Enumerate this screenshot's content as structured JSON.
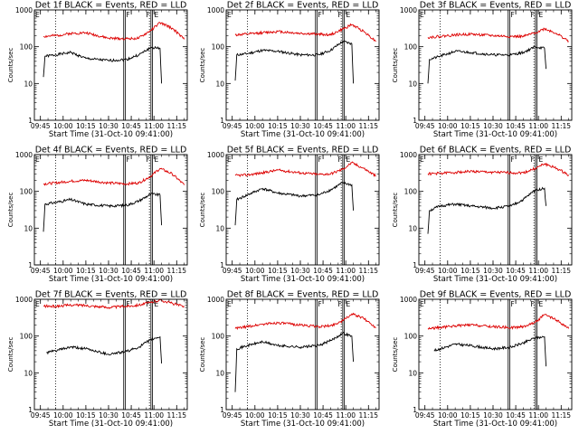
{
  "chart_data": {
    "type": "line",
    "y_scale": "log",
    "ylim": [
      1,
      1000
    ],
    "y_ticks": [
      1,
      10,
      100,
      1000
    ],
    "y_tick_labels": [
      "1",
      "10",
      "100",
      "1000"
    ],
    "x_ticks": [
      "09:45",
      "10:00",
      "10:15",
      "10:30",
      "10:45",
      "11:00",
      "11:15"
    ],
    "xlim": [
      "09:41",
      "11:22"
    ],
    "vertical_lines": {
      "dotted": [
        "09:55",
        "10:57"
      ],
      "solid": [
        "10:40",
        "10:41",
        "10:58",
        "10:59"
      ]
    },
    "marker_labels": [
      "F",
      "F",
      "E"
    ],
    "line_colors": {
      "events": "#000000",
      "lld": "#dd0000"
    },
    "panels": [
      {
        "title": "Det 1f BLACK = Events, RED = LLD",
        "xlabel": "Start Time (31-Oct-10 09:41:00)",
        "ylabel": "Counts/sec",
        "series": [
          {
            "name": "Events",
            "x": [
              "09:47",
              "09:48",
              "09:55",
              "10:05",
              "10:15",
              "10:30",
              "10:42",
              "10:50",
              "10:58",
              "11:04",
              "11:05"
            ],
            "y": [
              15,
              55,
              60,
              70,
              48,
              42,
              45,
              60,
              95,
              90,
              10
            ]
          },
          {
            "name": "LLD",
            "x": [
              "09:47",
              "09:55",
              "10:05",
              "10:15",
              "10:30",
              "10:42",
              "10:50",
              "10:58",
              "11:04",
              "11:12",
              "11:20"
            ],
            "y": [
              190,
              200,
              230,
              240,
              170,
              165,
              170,
              280,
              450,
              320,
              160
            ]
          }
        ]
      },
      {
        "title": "Det 2f BLACK = Events, RED = LLD",
        "xlabel": "Start Time (31-Oct-10 09:41:00)",
        "ylabel": "Counts/sec",
        "series": [
          {
            "name": "Events",
            "x": [
              "09:47",
              "09:48",
              "09:55",
              "10:05",
              "10:15",
              "10:30",
              "10:42",
              "10:50",
              "10:58",
              "11:04",
              "11:05"
            ],
            "y": [
              12,
              60,
              65,
              80,
              75,
              60,
              60,
              80,
              140,
              120,
              10
            ]
          },
          {
            "name": "LLD",
            "x": [
              "09:47",
              "09:55",
              "10:05",
              "10:15",
              "10:30",
              "10:42",
              "10:50",
              "10:58",
              "11:04",
              "11:12",
              "11:20"
            ],
            "y": [
              210,
              220,
              240,
              260,
              230,
              220,
              210,
              300,
              400,
              260,
              140
            ]
          }
        ]
      },
      {
        "title": "Det 3f BLACK = Events, RED = LLD",
        "xlabel": "Start Time (31-Oct-10 09:41:00)",
        "ylabel": "Counts/sec",
        "series": [
          {
            "name": "Events",
            "x": [
              "09:47",
              "09:48",
              "09:55",
              "10:05",
              "10:15",
              "10:30",
              "10:42",
              "10:50",
              "10:58",
              "11:04",
              "11:05"
            ],
            "y": [
              10,
              45,
              55,
              75,
              70,
              60,
              60,
              70,
              100,
              90,
              25
            ]
          },
          {
            "name": "LLD",
            "x": [
              "09:47",
              "09:55",
              "10:05",
              "10:15",
              "10:30",
              "10:42",
              "10:50",
              "10:58",
              "11:04",
              "11:12",
              "11:20"
            ],
            "y": [
              180,
              190,
              210,
              220,
              200,
              190,
              190,
              240,
              310,
              230,
              140
            ]
          }
        ]
      },
      {
        "title": "Det 4f BLACK = Events, RED = LLD",
        "xlabel": "Start Time (31-Oct-10 09:41:00)",
        "ylabel": "Counts/sec",
        "series": [
          {
            "name": "Events",
            "x": [
              "09:47",
              "09:48",
              "09:55",
              "10:05",
              "10:15",
              "10:30",
              "10:42",
              "10:50",
              "10:58",
              "11:04",
              "11:05"
            ],
            "y": [
              8,
              45,
              50,
              60,
              45,
              40,
              42,
              55,
              85,
              80,
              12
            ]
          },
          {
            "name": "LLD",
            "x": [
              "09:47",
              "09:55",
              "10:05",
              "10:15",
              "10:30",
              "10:42",
              "10:50",
              "10:58",
              "11:04",
              "11:12",
              "11:20"
            ],
            "y": [
              160,
              170,
              190,
              200,
              170,
              160,
              170,
              260,
              420,
              300,
              150
            ]
          }
        ]
      },
      {
        "title": "Det 5f BLACK = Events, RED = LLD",
        "xlabel": "Start Time (31-Oct-10 09:41:00)",
        "ylabel": "Counts/sec",
        "series": [
          {
            "name": "Events",
            "x": [
              "09:47",
              "09:48",
              "09:55",
              "10:05",
              "10:15",
              "10:30",
              "10:42",
              "10:50",
              "10:58",
              "11:04",
              "11:05"
            ],
            "y": [
              12,
              60,
              80,
              120,
              90,
              75,
              80,
              110,
              170,
              150,
              30
            ]
          },
          {
            "name": "LLD",
            "x": [
              "09:47",
              "09:55",
              "10:05",
              "10:15",
              "10:30",
              "10:42",
              "10:50",
              "10:58",
              "11:04",
              "11:12",
              "11:20"
            ],
            "y": [
              270,
              280,
              320,
              380,
              320,
              290,
              300,
              400,
              600,
              420,
              260
            ]
          }
        ]
      },
      {
        "title": "Det 6f BLACK = Events, RED = LLD",
        "xlabel": "Start Time (31-Oct-10 09:41:00)",
        "ylabel": "Counts/sec",
        "series": [
          {
            "name": "Events",
            "x": [
              "09:47",
              "09:48",
              "09:55",
              "10:05",
              "10:15",
              "10:30",
              "10:42",
              "10:50",
              "10:58",
              "11:04",
              "11:05"
            ],
            "y": [
              7,
              30,
              40,
              45,
              40,
              35,
              40,
              60,
              110,
              120,
              40
            ]
          },
          {
            "name": "LLD",
            "x": [
              "09:47",
              "09:55",
              "10:05",
              "10:15",
              "10:30",
              "10:42",
              "10:50",
              "10:58",
              "11:04",
              "11:12",
              "11:20"
            ],
            "y": [
              300,
              310,
              330,
              350,
              330,
              320,
              320,
              420,
              560,
              420,
              280
            ]
          }
        ]
      },
      {
        "title": "Det 7f BLACK = Events, RED = LLD",
        "xlabel": "Start Time (31-Oct-10 09:41:00)",
        "ylabel": "Counts/sec",
        "series": [
          {
            "name": "Events",
            "x": [
              "09:49",
              "09:55",
              "10:05",
              "10:15",
              "10:30",
              "10:42",
              "10:50",
              "10:58",
              "11:04",
              "11:05"
            ],
            "y": [
              35,
              40,
              50,
              45,
              32,
              38,
              50,
              80,
              95,
              18
            ]
          },
          {
            "name": "LLD",
            "x": [
              "09:47",
              "09:55",
              "10:05",
              "10:15",
              "10:30",
              "10:42",
              "10:50",
              "10:58",
              "11:04",
              "11:12",
              "11:20"
            ],
            "y": [
              650,
              640,
              700,
              680,
              600,
              650,
              700,
              820,
              950,
              780,
              620
            ]
          }
        ]
      },
      {
        "title": "Det 8f BLACK = Events, RED = LLD",
        "xlabel": "Start Time (31-Oct-10 09:41:00)",
        "ylabel": "Counts/sec",
        "series": [
          {
            "name": "Events",
            "x": [
              "09:47",
              "09:48",
              "09:55",
              "10:05",
              "10:15",
              "10:30",
              "10:42",
              "10:50",
              "10:58",
              "11:04",
              "11:05"
            ],
            "y": [
              3,
              45,
              55,
              70,
              55,
              50,
              55,
              75,
              120,
              100,
              20
            ]
          },
          {
            "name": "LLD",
            "x": [
              "09:47",
              "09:55",
              "10:05",
              "10:15",
              "10:30",
              "10:42",
              "10:50",
              "10:58",
              "11:04",
              "11:12",
              "11:20"
            ],
            "y": [
              160,
              180,
              210,
              230,
              200,
              180,
              190,
              260,
              400,
              300,
              170
            ]
          }
        ]
      },
      {
        "title": "Det 9f BLACK = Events, RED = LLD",
        "xlabel": "Start Time (31-Oct-10 09:41:00)",
        "ylabel": "Counts/sec",
        "series": [
          {
            "name": "Events",
            "x": [
              "09:51",
              "09:55",
              "10:05",
              "10:15",
              "10:30",
              "10:42",
              "10:50",
              "10:58",
              "11:04",
              "11:05"
            ],
            "y": [
              40,
              45,
              60,
              55,
              45,
              50,
              65,
              90,
              95,
              15
            ]
          },
          {
            "name": "LLD",
            "x": [
              "09:47",
              "09:55",
              "10:05",
              "10:15",
              "10:30",
              "10:42",
              "10:50",
              "10:58",
              "11:04",
              "11:12",
              "11:20"
            ],
            "y": [
              160,
              170,
              190,
              200,
              180,
              170,
              180,
              240,
              380,
              270,
              160
            ]
          }
        ]
      }
    ]
  }
}
